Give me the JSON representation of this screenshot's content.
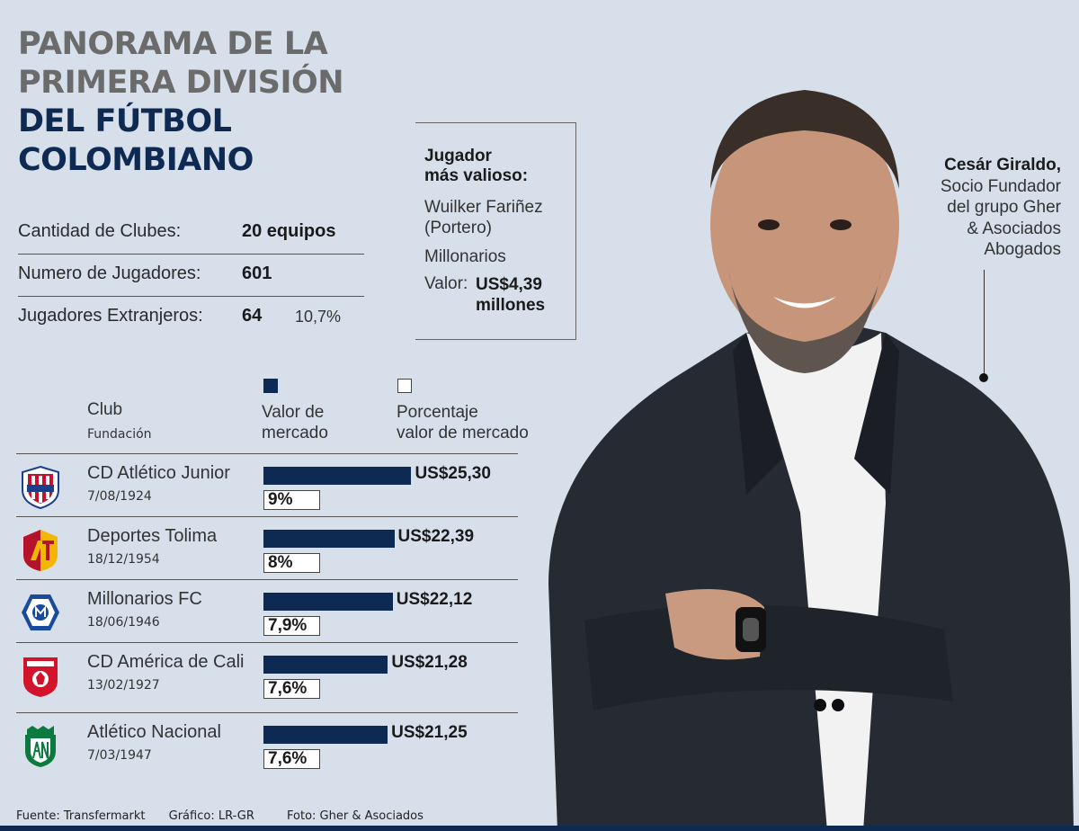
{
  "title": {
    "line1": "PANORAMA DE LA",
    "line2": "PRIMERA DIVISIÓN",
    "line3": "DEL FÚTBOL",
    "line4": "COLOMBIANO"
  },
  "stats": [
    {
      "label": "Cantidad de Clubes:",
      "value": "20 equipos",
      "extra": ""
    },
    {
      "label": "Numero de Jugadores:",
      "value": "601",
      "extra": ""
    },
    {
      "label": "Jugadores Extranjeros:",
      "value": "64",
      "extra": "10,7%"
    }
  ],
  "mvp": {
    "heading1": "Jugador",
    "heading2": "más valioso:",
    "name1": "Wuilker Fariñez",
    "name2": "(Portero)",
    "club": "Millonarios",
    "value_label": "Valor:",
    "value1": "US$4,39",
    "value2": "millones"
  },
  "person": {
    "name": "Cesár Giraldo,",
    "line1": "Socio Fundador",
    "line2": "del grupo Gher",
    "line3": "& Asociados",
    "line4": "Abogados"
  },
  "table_headers": {
    "club": "Club",
    "fundacion": "Fundación",
    "valor1": "Valor de",
    "valor2": "mercado",
    "pct1": "Porcentaje",
    "pct2": "valor de mercado"
  },
  "chart_data": {
    "type": "bar",
    "categories": [
      "CD Atlético Junior",
      "Deportes Tolima",
      "Millonarios FC",
      "CD América de Cali",
      "Atlético Nacional"
    ],
    "founded": [
      "7/08/1924",
      "18/12/1954",
      "18/06/1946",
      "13/02/1927",
      "7/03/1947"
    ],
    "series": [
      {
        "name": "Valor de mercado",
        "values": [
          25.3,
          22.39,
          22.12,
          21.28,
          21.25
        ],
        "labels": [
          "US$25,30",
          "US$22,39",
          "US$22,12",
          "US$21,28",
          "US$21,25"
        ]
      },
      {
        "name": "Porcentaje valor de mercado",
        "values": [
          9,
          8,
          7.9,
          7.6,
          7.6
        ],
        "labels": [
          "9%",
          "8%",
          "7,9%",
          "7,6%",
          "7,6%"
        ]
      }
    ],
    "colors": {
      "bar": "#0f2a52",
      "pct_box": "#ffffff"
    }
  },
  "footer": {
    "source": "Fuente: Transfermarkt",
    "graphic": "Gráfico: LR-GR",
    "photo": "Foto: Gher & Asociados"
  }
}
